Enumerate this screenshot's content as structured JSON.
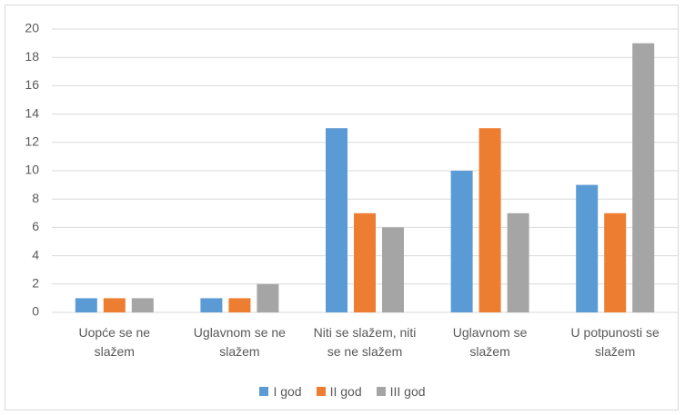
{
  "chart_data": {
    "type": "bar",
    "categories": [
      "Uopće se ne slažem",
      "Uglavnom se ne slažem",
      "Niti se slažem, niti se ne slažem",
      "Uglavnom se slažem",
      "U potpunosti se slažem"
    ],
    "series": [
      {
        "name": "I god",
        "color": "#5b9bd5",
        "values": [
          1,
          1,
          13,
          10,
          9
        ]
      },
      {
        "name": "II god",
        "color": "#ed7d31",
        "values": [
          1,
          1,
          7,
          13,
          7
        ]
      },
      {
        "name": "III god",
        "color": "#a5a5a5",
        "values": [
          1,
          2,
          6,
          7,
          19
        ]
      }
    ],
    "ylim": [
      0,
      20
    ],
    "yticks": [
      0,
      2,
      4,
      6,
      8,
      10,
      12,
      14,
      16,
      18,
      20
    ],
    "grid": true,
    "legend": "bottom"
  }
}
